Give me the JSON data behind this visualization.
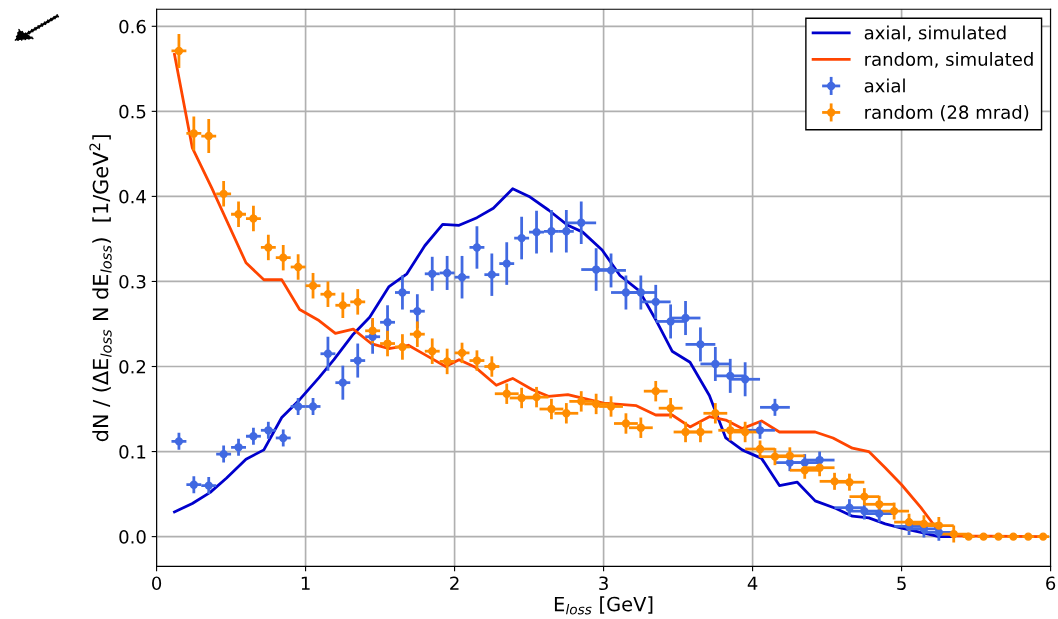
{
  "chart_data": {
    "type": "scatter",
    "xlabel": "E$_{loss}$ [GeV]",
    "ylabel": "dN / (ΔE$_{loss}$ N dE$_{loss}$)  [1/GeV$^{2}$]",
    "xlim": [
      0,
      6
    ],
    "ylim": [
      -0.035,
      0.62
    ],
    "xticks": [
      0,
      1,
      2,
      3,
      4,
      5,
      6
    ],
    "yticks": [
      {
        "value": 0,
        "label": "0.0"
      },
      0.1,
      0.2,
      0.3,
      0.4,
      0.5,
      0.6
    ],
    "grid": true,
    "legend": "top right",
    "series": [
      {
        "name": "axial, simulated",
        "type": "line",
        "color": "#0000cc",
        "x": [
          0.12,
          0.24,
          0.36,
          0.47,
          0.6,
          0.72,
          0.84,
          0.96,
          1.09,
          1.19,
          1.32,
          1.43,
          1.56,
          1.68,
          1.8,
          1.92,
          2.03,
          2.15,
          2.26,
          2.39,
          2.5,
          2.63,
          2.76,
          2.86,
          2.99,
          3.11,
          3.24,
          3.35,
          3.46,
          3.58,
          3.71,
          3.82,
          3.93,
          4.06,
          4.18,
          4.3,
          4.42,
          4.56,
          4.67,
          4.78,
          4.89,
          5.0,
          5.13,
          5.25,
          5.35
        ],
        "values": [
          0.029,
          0.039,
          0.052,
          0.069,
          0.091,
          0.102,
          0.14,
          0.161,
          0.187,
          0.208,
          0.238,
          0.258,
          0.294,
          0.309,
          0.342,
          0.367,
          0.366,
          0.375,
          0.386,
          0.409,
          0.4,
          0.384,
          0.366,
          0.358,
          0.337,
          0.307,
          0.289,
          0.255,
          0.218,
          0.205,
          0.166,
          0.116,
          0.102,
          0.092,
          0.06,
          0.064,
          0.042,
          0.033,
          0.024,
          0.022,
          0.015,
          0.01,
          0.005,
          0.0,
          0.0
        ]
      },
      {
        "name": "random, simulated",
        "type": "line",
        "color": "#ff4500",
        "x": [
          0.12,
          0.24,
          0.37,
          0.6,
          0.72,
          0.84,
          0.96,
          1.09,
          1.2,
          1.32,
          1.44,
          1.56,
          1.69,
          1.8,
          1.94,
          2.03,
          2.14,
          2.28,
          2.39,
          2.52,
          2.63,
          2.76,
          2.88,
          3.0,
          3.22,
          3.35,
          3.46,
          3.58,
          3.71,
          3.82,
          3.93,
          4.06,
          4.18,
          4.42,
          4.54,
          4.67,
          4.78,
          4.89,
          5.0,
          5.13,
          5.25,
          5.36,
          5.95
        ],
        "values": [
          0.567,
          0.457,
          0.41,
          0.322,
          0.302,
          0.302,
          0.267,
          0.254,
          0.239,
          0.244,
          0.227,
          0.221,
          0.225,
          0.214,
          0.2,
          0.208,
          0.199,
          0.178,
          0.186,
          0.173,
          0.165,
          0.167,
          0.162,
          0.157,
          0.154,
          0.143,
          0.143,
          0.129,
          0.141,
          0.137,
          0.127,
          0.136,
          0.123,
          0.123,
          0.116,
          0.104,
          0.1,
          0.081,
          0.061,
          0.034,
          0.006,
          0.001,
          0.0
        ]
      },
      {
        "name": "axial",
        "marker": "circle",
        "color": "#4169e1",
        "x": [
          0.15,
          0.25,
          0.35,
          0.45,
          0.55,
          0.65,
          0.75,
          0.85,
          0.95,
          1.05,
          1.15,
          1.25,
          1.35,
          1.45,
          1.55,
          1.65,
          1.75,
          1.85,
          1.95,
          2.05,
          2.15,
          2.25,
          2.35,
          2.45,
          2.55,
          2.65,
          2.75,
          2.85,
          2.95,
          3.05,
          3.15,
          3.25,
          3.35,
          3.45,
          3.55,
          3.65,
          3.75,
          3.85,
          3.95,
          4.05,
          4.15,
          4.25,
          4.35,
          4.45,
          4.55,
          4.65,
          4.75,
          4.85,
          4.95,
          5.05,
          5.15,
          5.25
        ],
        "values": [
          0.112,
          0.061,
          0.06,
          0.097,
          0.105,
          0.118,
          0.125,
          0.116,
          0.153,
          0.153,
          0.215,
          0.181,
          0.207,
          0.235,
          0.252,
          0.287,
          0.265,
          0.309,
          0.31,
          0.305,
          0.34,
          0.308,
          0.321,
          0.351,
          0.358,
          0.359,
          0.359,
          0.369,
          0.314,
          0.313,
          0.287,
          0.287,
          0.276,
          0.253,
          0.257,
          0.226,
          0.203,
          0.189,
          0.185,
          0.125,
          0.152,
          0.087,
          0.087,
          0.09,
          null,
          0.034,
          0.03,
          0.027,
          null,
          0.012,
          0.009,
          0.005
        ],
        "errors": [
          0.01,
          0.01,
          0.01,
          0.01,
          0.01,
          0.01,
          0.01,
          0.01,
          0.01,
          0.01,
          0.02,
          0.02,
          0.02,
          0.02,
          0.02,
          0.02,
          0.02,
          0.02,
          0.02,
          0.025,
          0.025,
          0.025,
          0.025,
          0.025,
          0.025,
          0.025,
          0.025,
          0.025,
          0.025,
          0.02,
          0.02,
          0.02,
          0.02,
          0.02,
          0.02,
          0.02,
          0.02,
          0.02,
          0.02,
          0.01,
          0.01,
          0.01,
          0.01,
          0.01,
          null,
          0.01,
          0.01,
          0.01,
          null,
          0.01,
          0.01,
          0.01
        ],
        "xerrors": [
          0.05,
          0.05,
          0.05,
          0.05,
          0.05,
          0.05,
          0.05,
          0.05,
          0.05,
          0.05,
          0.05,
          0.05,
          0.05,
          0.05,
          0.05,
          0.05,
          0.05,
          0.05,
          0.05,
          0.05,
          0.05,
          0.05,
          0.05,
          0.05,
          0.05,
          0.05,
          0.05,
          0.1,
          0.1,
          0.1,
          0.1,
          0.1,
          0.1,
          0.1,
          0.1,
          0.1,
          0.1,
          0.1,
          0.1,
          0.1,
          0.1,
          0.1,
          0.1,
          0.1,
          null,
          0.1,
          0.1,
          0.1,
          null,
          0.1,
          0.1,
          0.1
        ]
      },
      {
        "name": "random (28 mrad)",
        "marker": "circle",
        "color": "#ff8c00",
        "x": [
          0.15,
          0.25,
          0.35,
          0.45,
          0.55,
          0.65,
          0.75,
          0.85,
          0.95,
          1.05,
          1.15,
          1.25,
          1.35,
          1.45,
          1.55,
          1.65,
          1.75,
          1.85,
          1.95,
          2.05,
          2.15,
          2.25,
          2.35,
          2.45,
          2.55,
          2.65,
          2.75,
          2.85,
          2.95,
          3.05,
          3.15,
          3.25,
          3.35,
          3.45,
          3.55,
          3.65,
          3.75,
          3.85,
          3.95,
          4.05,
          4.15,
          4.25,
          4.35,
          4.45,
          4.55,
          4.65,
          4.75,
          4.85,
          4.95,
          5.05,
          5.15,
          5.25,
          5.35,
          5.45,
          5.55,
          5.65,
          5.75,
          5.85,
          5.95
        ],
        "values": [
          0.571,
          0.474,
          0.471,
          0.403,
          0.379,
          0.374,
          0.34,
          0.328,
          0.317,
          0.295,
          0.285,
          0.272,
          0.276,
          0.242,
          0.227,
          0.223,
          0.238,
          0.218,
          0.206,
          0.216,
          0.207,
          0.2,
          0.168,
          0.163,
          0.164,
          0.15,
          0.145,
          0.159,
          0.156,
          0.153,
          0.133,
          0.128,
          0.171,
          0.151,
          0.123,
          0.123,
          0.145,
          0.125,
          0.123,
          0.103,
          0.094,
          0.095,
          0.078,
          0.081,
          0.065,
          0.064,
          0.047,
          0.038,
          0.03,
          0.017,
          0.015,
          0.013,
          0.003,
          0,
          0,
          0,
          0,
          0,
          0
        ],
        "errors": [
          0.02,
          0.02,
          0.02,
          0.015,
          0.015,
          0.015,
          0.015,
          0.015,
          0.015,
          0.015,
          0.015,
          0.015,
          0.015,
          0.015,
          0.015,
          0.015,
          0.015,
          0.015,
          0.015,
          0.012,
          0.012,
          0.012,
          0.012,
          0.012,
          0.012,
          0.012,
          0.012,
          0.012,
          0.012,
          0.012,
          0.012,
          0.012,
          0.012,
          0.012,
          0.012,
          0.012,
          0.012,
          0.012,
          0.012,
          0.01,
          0.01,
          0.01,
          0.01,
          0.01,
          0.01,
          0.01,
          0.01,
          0.01,
          0.01,
          0.01,
          0.01,
          0.01,
          0.01,
          0,
          0,
          0,
          0,
          0,
          0
        ],
        "xerrors": [
          0.05,
          0.05,
          0.05,
          0.05,
          0.05,
          0.05,
          0.05,
          0.05,
          0.05,
          0.05,
          0.05,
          0.05,
          0.05,
          0.05,
          0.05,
          0.05,
          0.05,
          0.05,
          0.05,
          0.05,
          0.05,
          0.05,
          0.08,
          0.08,
          0.08,
          0.08,
          0.08,
          0.08,
          0.08,
          0.08,
          0.08,
          0.08,
          0.08,
          0.08,
          0.08,
          0.08,
          0.08,
          0.08,
          0.08,
          0.1,
          0.1,
          0.1,
          0.1,
          0.1,
          0.1,
          0.1,
          0.1,
          0.1,
          0.1,
          0.1,
          0.1,
          0.1,
          0.1,
          0.04,
          0.04,
          0.04,
          0.04,
          0.04,
          0.04
        ]
      }
    ]
  }
}
